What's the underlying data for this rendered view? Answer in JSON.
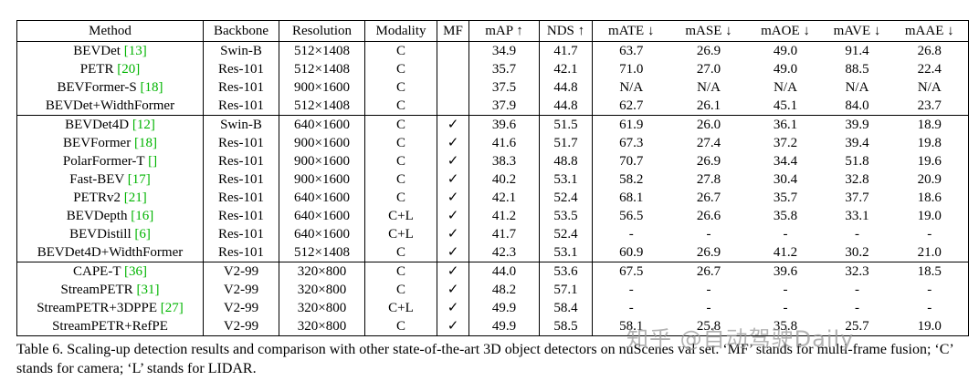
{
  "colors": {
    "cite_green": "#00b400",
    "watermark_gray": "#9a9a9a"
  },
  "table": {
    "columns": [
      "Method",
      "Backbone",
      "Resolution",
      "Modality",
      "MF",
      "mAP ↑",
      "NDS ↑",
      "mATE ↓",
      "mASE ↓",
      "mAOE ↓",
      "mAVE ↓",
      "mAAE ↓"
    ],
    "checkmark": "✓",
    "metric_keys": [
      "mAP",
      "NDS",
      "mATE",
      "mASE",
      "mAOE",
      "mAVE",
      "mAAE"
    ],
    "groups": [
      {
        "rows": [
          {
            "method": "BEVDet",
            "cite": "[13]",
            "backbone": "Swin-B",
            "resolution": "512×1408",
            "modality": "C",
            "mf": false,
            "values": [
              "34.9",
              "41.7",
              "63.7",
              "26.9",
              "49.0",
              "91.4",
              "26.8"
            ]
          },
          {
            "method": "PETR",
            "cite": "[20]",
            "backbone": "Res-101",
            "resolution": "512×1408",
            "modality": "C",
            "mf": false,
            "values": [
              "35.7",
              "42.1",
              "71.0",
              "27.0",
              "49.0",
              "88.5",
              "22.4"
            ]
          },
          {
            "method": "BEVFormer-S",
            "cite": "[18]",
            "backbone": "Res-101",
            "resolution": "900×1600",
            "modality": "C",
            "mf": false,
            "values": [
              "37.5",
              "44.8",
              "N/A",
              "N/A",
              "N/A",
              "N/A",
              "N/A"
            ]
          },
          {
            "method": "BEVDet+WidthFormer",
            "cite": "",
            "backbone": "Res-101",
            "resolution": "512×1408",
            "modality": "C",
            "mf": false,
            "values": [
              "37.9",
              "44.8",
              "62.7",
              "26.1",
              "45.1",
              "84.0",
              "23.7"
            ]
          }
        ]
      },
      {
        "rows": [
          {
            "method": "BEVDet4D",
            "cite": "[12]",
            "backbone": "Swin-B",
            "resolution": "640×1600",
            "modality": "C",
            "mf": true,
            "values": [
              "39.6",
              "51.5",
              "61.9",
              "26.0",
              "36.1",
              "39.9",
              "18.9"
            ]
          },
          {
            "method": "BEVFormer",
            "cite": "[18]",
            "backbone": "Res-101",
            "resolution": "900×1600",
            "modality": "C",
            "mf": true,
            "values": [
              "41.6",
              "51.7",
              "67.3",
              "27.4",
              "37.2",
              "39.4",
              "19.8"
            ]
          },
          {
            "method": "PolarFormer-T",
            "cite": "[]",
            "backbone": "Res-101",
            "resolution": "900×1600",
            "modality": "C",
            "mf": true,
            "values": [
              "38.3",
              "48.8",
              "70.7",
              "26.9",
              "34.4",
              "51.8",
              "19.6"
            ]
          },
          {
            "method": "Fast-BEV",
            "cite": "[17]",
            "backbone": "Res-101",
            "resolution": "900×1600",
            "modality": "C",
            "mf": true,
            "values": [
              "40.2",
              "53.1",
              "58.2",
              "27.8",
              "30.4",
              "32.8",
              "20.9"
            ]
          },
          {
            "method": "PETRv2",
            "cite": "[21]",
            "backbone": "Res-101",
            "resolution": "640×1600",
            "modality": "C",
            "mf": true,
            "values": [
              "42.1",
              "52.4",
              "68.1",
              "26.7",
              "35.7",
              "37.7",
              "18.6"
            ]
          },
          {
            "method": "BEVDepth",
            "cite": "[16]",
            "backbone": "Res-101",
            "resolution": "640×1600",
            "modality": "C+L",
            "mf": true,
            "values": [
              "41.2",
              "53.5",
              "56.5",
              "26.6",
              "35.8",
              "33.1",
              "19.0"
            ]
          },
          {
            "method": "BEVDistill",
            "cite": "[6]",
            "backbone": "Res-101",
            "resolution": "640×1600",
            "modality": "C+L",
            "mf": true,
            "values": [
              "41.7",
              "52.4",
              "-",
              "-",
              "-",
              "-",
              "-"
            ]
          },
          {
            "method": "BEVDet4D+WidthFormer",
            "cite": "",
            "backbone": "Res-101",
            "resolution": "512×1408",
            "modality": "C",
            "mf": true,
            "values": [
              "42.3",
              "53.1",
              "60.9",
              "26.9",
              "41.2",
              "30.2",
              "21.0"
            ]
          }
        ]
      },
      {
        "rows": [
          {
            "method": "CAPE-T",
            "cite": "[36]",
            "backbone": "V2-99",
            "resolution": "320×800",
            "modality": "C",
            "mf": true,
            "values": [
              "44.0",
              "53.6",
              "67.5",
              "26.7",
              "39.6",
              "32.3",
              "18.5"
            ]
          },
          {
            "method": "StreamPETR",
            "cite": "[31]",
            "backbone": "V2-99",
            "resolution": "320×800",
            "modality": "C",
            "mf": true,
            "values": [
              "48.2",
              "57.1",
              "-",
              "-",
              "-",
              "-",
              "-"
            ]
          },
          {
            "method": "StreamPETR+3DPPE",
            "cite": "[27]",
            "backbone": "V2-99",
            "resolution": "320×800",
            "modality": "C+L",
            "mf": true,
            "values": [
              "49.9",
              "58.4",
              "-",
              "-",
              "-",
              "-",
              "-"
            ]
          },
          {
            "method": "StreamPETR+RefPE",
            "cite": "",
            "backbone": "V2-99",
            "resolution": "320×800",
            "modality": "C",
            "mf": true,
            "values": [
              "49.9",
              "58.5",
              "58.1",
              "25.8",
              "35.8",
              "25.7",
              "19.0"
            ]
          }
        ]
      }
    ]
  },
  "caption": {
    "text": "Table 6. Scaling-up detection results and comparison with other state-of-the-art 3D object detectors on nuScenes val set. ‘MF’ stands for multi-frame fusion; ‘C’ stands for camera; ‘L’ stands for LIDAR."
  },
  "watermark": {
    "text": "知乎 @自动驾驶Daily"
  }
}
